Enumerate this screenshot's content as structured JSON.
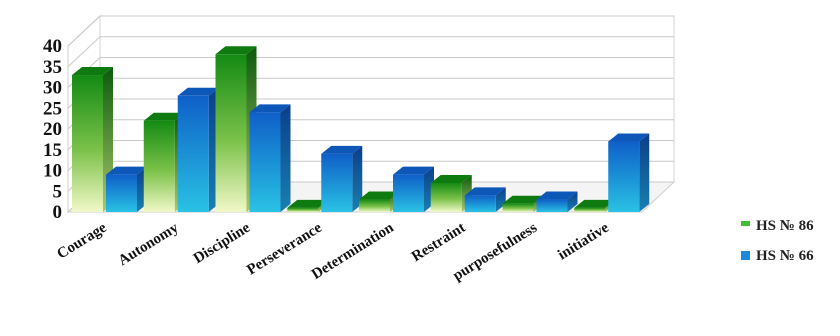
{
  "chart_data": {
    "type": "bar",
    "categories": [
      "Courage",
      "Autonomy",
      "Discipline",
      "Perseverance",
      "Determination",
      "Restraint",
      "purposefulness",
      "initiative"
    ],
    "series": [
      {
        "name": "HS № 86",
        "values": [
          33,
          22,
          38,
          1,
          3,
          7,
          2,
          1
        ],
        "color": "#1f8a1f"
      },
      {
        "name": "HS № 66",
        "values": [
          9,
          28,
          24,
          14,
          9,
          4,
          3,
          17
        ],
        "color": "#1e78d8"
      }
    ],
    "ylim": [
      0,
      40
    ],
    "yticks": [
      0,
      5,
      10,
      15,
      20,
      25,
      30,
      35,
      40
    ],
    "grid": true,
    "legend_position": "right"
  }
}
